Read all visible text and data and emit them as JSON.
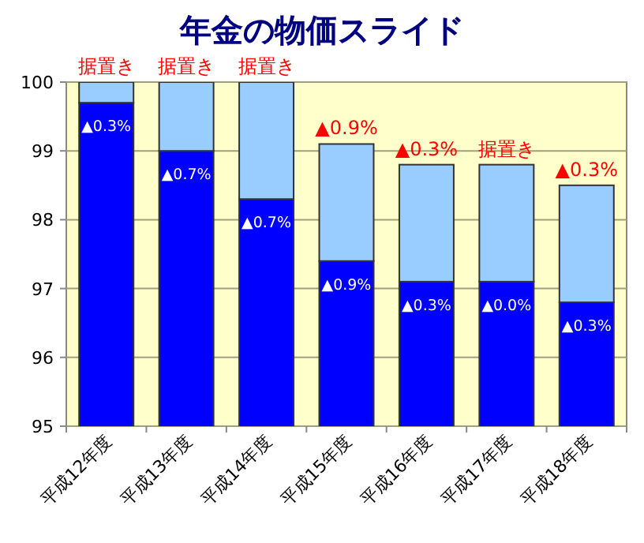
{
  "chart_data": {
    "type": "bar",
    "title": "年金の物価スライド",
    "categories": [
      "平成12年度",
      "平成13年度",
      "平成14年度",
      "平成15年度",
      "平成16年度",
      "平成17年度",
      "平成18年度"
    ],
    "series": [
      {
        "color": "#0000ff",
        "values": [
          99.7,
          99.0,
          98.3,
          97.4,
          97.1,
          97.1,
          96.8
        ]
      },
      {
        "color": "#99ccff",
        "base": [
          99.7,
          99.0,
          98.3,
          97.4,
          97.1,
          97.1,
          96.8
        ],
        "values": [
          0.3,
          1.0,
          1.7,
          1.7,
          1.7,
          1.7,
          1.7
        ]
      }
    ],
    "annotations": [
      {
        "text": "据置き",
        "x": "平成12年度",
        "y": 100
      },
      {
        "text": "据置き",
        "x": "平成13年度",
        "y": 100
      },
      {
        "text": "据置き",
        "x": "平成14年度",
        "y": 100
      },
      {
        "text": "▲0.9%",
        "x": "平成15年度",
        "y": 99.1
      },
      {
        "text": "▲0.3%",
        "x": "平成16年度",
        "y": 98.8
      },
      {
        "text": "据置き",
        "x": "平成17年度",
        "y": 98.8
      },
      {
        "text": "▲0.3%",
        "x": "平成18年度",
        "y": 98.5
      },
      {
        "text": "▲0.3%",
        "x": "平成12年度",
        "y": 99.7
      },
      {
        "text": "▲0.7%",
        "x": "平成13年度",
        "y": 99.0
      },
      {
        "text": "▲0.7%",
        "x": "平成14年度",
        "y": 98.3
      },
      {
        "text": "▲0.9%",
        "x": "平成15年度",
        "y": 97.4
      },
      {
        "text": "▲0.3%",
        "x": "平成16年度",
        "y": 97.1
      },
      {
        "text": "▲0.0%",
        "x": "平成17年度",
        "y": 97.1
      },
      {
        "text": "▲0.3%",
        "x": "平成18年度",
        "y": 96.8
      }
    ],
    "stacked": true,
    "ylim": [
      95,
      100
    ],
    "yticks": [
      95,
      96,
      97,
      98,
      99,
      100
    ],
    "grid": "y"
  }
}
